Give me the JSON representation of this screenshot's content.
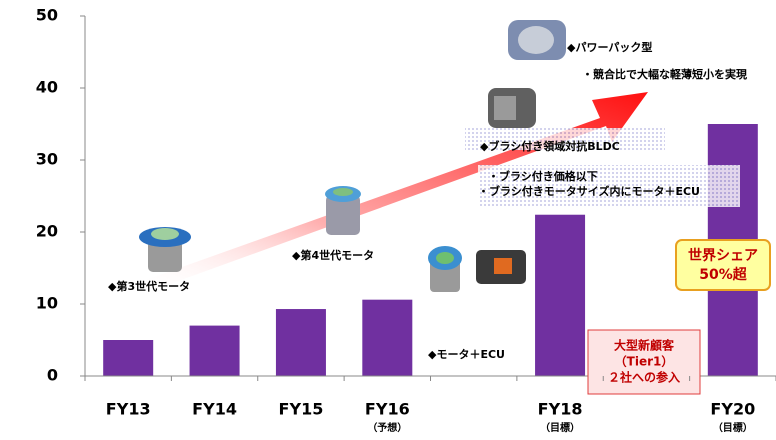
{
  "chart_data": {
    "type": "bar",
    "categories": [
      "FY13",
      "FY14",
      "FY15",
      "FY16",
      null,
      "FY18",
      null,
      "FY20"
    ],
    "category_notes": [
      null,
      null,
      null,
      "（予想）",
      null,
      "（目標）",
      null,
      "（目標）"
    ],
    "values": [
      5,
      7,
      9.3,
      10.6,
      null,
      22.4,
      null,
      35
    ],
    "color": "#7030a0",
    "ylim": [
      0,
      50
    ],
    "yticks": [
      0,
      10,
      20,
      30,
      40,
      50
    ],
    "annotations": [
      "◆パワーパック型",
      "・競合比で大幅な軽薄短小を実現",
      "◆ブラシ付き領域対抗BLDC",
      "・ブラシ付き価格以下",
      "・ブラシ付きモータサイズ内にモータ＋ECU",
      "◆第4世代モータ",
      "◆第3世代モータ",
      "◆モータ＋ECU"
    ],
    "customer_box": [
      "大型新顧客",
      "（Tier1）",
      "２社への参入"
    ],
    "share_box": [
      "世界シェア",
      "50%超"
    ]
  }
}
